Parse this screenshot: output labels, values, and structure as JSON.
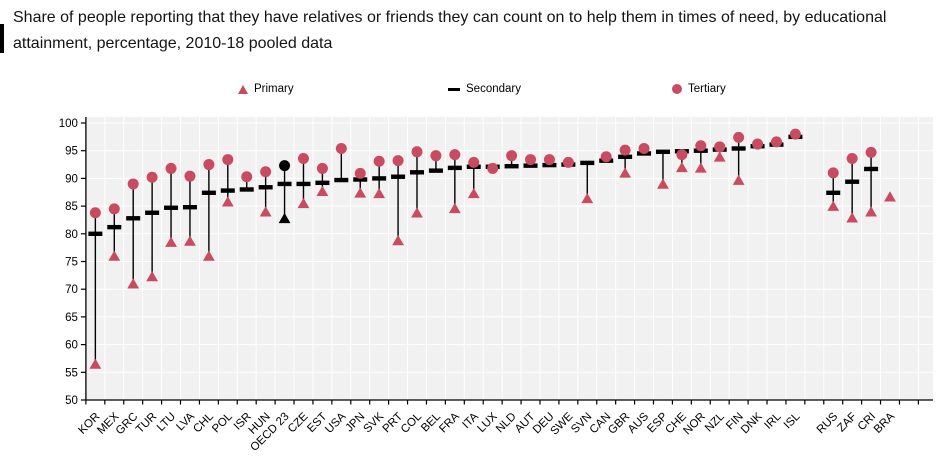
{
  "chart_data": {
    "type": "scatter",
    "title": "Share of people reporting that they have relatives or friends they can count on to help them in times of need, by educational attainment, percentage, 2010-18 pooled data",
    "ylim": [
      50,
      100
    ],
    "yticks": [
      50,
      55,
      60,
      65,
      70,
      75,
      80,
      85,
      90,
      95,
      100
    ],
    "grid": true,
    "legend_position": "top",
    "plot_background": "#f1f1f1",
    "gridline_color": "#ffffff",
    "axis_color": "#000000",
    "marker_color": "#c84b5f",
    "highlight_color": "#000000",
    "series": [
      {
        "name": "Primary",
        "marker": "triangle",
        "color": "#c84b5f"
      },
      {
        "name": "Secondary",
        "marker": "dash",
        "color": "#000000"
      },
      {
        "name": "Tertiary",
        "marker": "circle",
        "color": "#c84b5f"
      }
    ],
    "points": [
      {
        "label": "KOR",
        "primary": 56.5,
        "secondary": 80.0,
        "tertiary": 83.8
      },
      {
        "label": "MEX",
        "primary": 76.0,
        "secondary": 81.2,
        "tertiary": 84.5
      },
      {
        "label": "GRC",
        "primary": 71.0,
        "secondary": 82.8,
        "tertiary": 89.0
      },
      {
        "label": "TUR",
        "primary": 72.3,
        "secondary": 83.8,
        "tertiary": 90.2
      },
      {
        "label": "LTU",
        "primary": 78.5,
        "secondary": 84.7,
        "tertiary": 91.8
      },
      {
        "label": "LVA",
        "primary": 78.7,
        "secondary": 84.8,
        "tertiary": 90.4
      },
      {
        "label": "CHL",
        "primary": 76.0,
        "secondary": 87.4,
        "tertiary": 92.5
      },
      {
        "label": "POL",
        "primary": 85.8,
        "secondary": 87.8,
        "tertiary": 93.4
      },
      {
        "label": "ISR",
        "primary": null,
        "secondary": 88.0,
        "tertiary": 90.3
      },
      {
        "label": "HUN",
        "primary": 84.0,
        "secondary": 88.4,
        "tertiary": 91.2
      },
      {
        "label": "OECD 23",
        "primary": 82.8,
        "secondary": 89.0,
        "tertiary": 92.3,
        "highlight": true
      },
      {
        "label": "CZE",
        "primary": 85.5,
        "secondary": 89.0,
        "tertiary": 93.6
      },
      {
        "label": "EST",
        "primary": 87.7,
        "secondary": 89.2,
        "tertiary": 91.8
      },
      {
        "label": "USA",
        "primary": null,
        "secondary": 89.7,
        "tertiary": 95.4
      },
      {
        "label": "JPN",
        "primary": 87.4,
        "secondary": 89.8,
        "tertiary": 90.9
      },
      {
        "label": "SVK",
        "primary": 87.3,
        "secondary": 90.0,
        "tertiary": 93.1
      },
      {
        "label": "PRT",
        "primary": 78.8,
        "secondary": 90.3,
        "tertiary": 93.2
      },
      {
        "label": "COL",
        "primary": 83.8,
        "secondary": 91.1,
        "tertiary": 94.8
      },
      {
        "label": "BEL",
        "primary": null,
        "secondary": 91.4,
        "tertiary": 94.1
      },
      {
        "label": "FRA",
        "primary": 84.6,
        "secondary": 91.9,
        "tertiary": 94.3
      },
      {
        "label": "ITA",
        "primary": 87.3,
        "secondary": 92.1,
        "tertiary": 92.9
      },
      {
        "label": "LUX",
        "primary": null,
        "secondary": 92.1,
        "tertiary": 91.8
      },
      {
        "label": "NLD",
        "primary": null,
        "secondary": 92.2,
        "tertiary": 94.1
      },
      {
        "label": "AUT",
        "primary": null,
        "secondary": 92.3,
        "tertiary": 93.4
      },
      {
        "label": "DEU",
        "primary": null,
        "secondary": 92.4,
        "tertiary": 93.4
      },
      {
        "label": "SWE",
        "primary": null,
        "secondary": 92.5,
        "tertiary": 92.9
      },
      {
        "label": "SVN",
        "primary": 86.4,
        "secondary": 92.8,
        "tertiary": null
      },
      {
        "label": "CAN",
        "primary": null,
        "secondary": 93.2,
        "tertiary": 93.9
      },
      {
        "label": "GBR",
        "primary": 91.0,
        "secondary": 93.9,
        "tertiary": 95.1
      },
      {
        "label": "AUS",
        "primary": null,
        "secondary": 94.5,
        "tertiary": 95.4
      },
      {
        "label": "ESP",
        "primary": 89.0,
        "secondary": 94.8,
        "tertiary": null
      },
      {
        "label": "CHE",
        "primary": 92.0,
        "secondary": 94.9,
        "tertiary": 94.3
      },
      {
        "label": "NOR",
        "primary": 91.9,
        "secondary": 95.0,
        "tertiary": 95.9
      },
      {
        "label": "NZL",
        "primary": 93.9,
        "secondary": 95.2,
        "tertiary": 95.7
      },
      {
        "label": "FIN",
        "primary": 89.7,
        "secondary": 95.4,
        "tertiary": 97.4
      },
      {
        "label": "DNK",
        "primary": null,
        "secondary": 95.8,
        "tertiary": 96.2
      },
      {
        "label": "IRL",
        "primary": null,
        "secondary": 96.1,
        "tertiary": 96.6
      },
      {
        "label": "ISL",
        "primary": null,
        "secondary": 97.5,
        "tertiary": 98.0
      },
      {
        "label": "RUS",
        "primary": 85.0,
        "secondary": 87.4,
        "tertiary": 91.0,
        "gap_before": true
      },
      {
        "label": "ZAF",
        "primary": 82.9,
        "secondary": 89.4,
        "tertiary": 93.6
      },
      {
        "label": "CRI",
        "primary": 84.0,
        "secondary": 91.7,
        "tertiary": 94.7
      },
      {
        "label": "BRA",
        "primary": 86.7,
        "secondary": null,
        "tertiary": null
      }
    ]
  }
}
